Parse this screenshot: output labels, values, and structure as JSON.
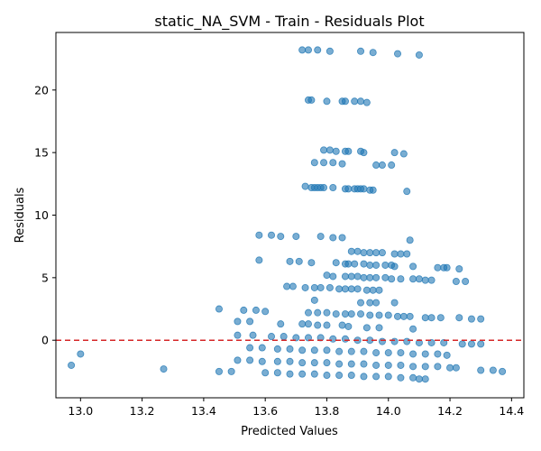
{
  "chart_data": {
    "type": "scatter",
    "title": "static_NA_SVM - Train - Residuals Plot",
    "xlabel": "Predicted Values",
    "ylabel": "Residuals",
    "xlim": [
      12.92,
      14.44
    ],
    "ylim": [
      -4.6,
      24.6
    ],
    "xticks": [
      13.0,
      13.2,
      13.4,
      13.6,
      13.8,
      14.0,
      14.2,
      14.4
    ],
    "xtick_labels": [
      "13.0",
      "13.2",
      "13.4",
      "13.6",
      "13.8",
      "14.0",
      "14.2",
      "14.4"
    ],
    "yticks": [
      0,
      5,
      10,
      15,
      20
    ],
    "ytick_labels": [
      "0",
      "5",
      "10",
      "15",
      "20"
    ],
    "grid": false,
    "reference_line": {
      "y": 0,
      "color": "#d62728",
      "style": "dashed"
    },
    "marker_color": "#1f77b4",
    "marker_alpha": 0.6,
    "series": [
      {
        "points": [
          [
            13.72,
            23.2
          ],
          [
            13.74,
            23.2
          ],
          [
            13.77,
            23.2
          ],
          [
            13.81,
            23.1
          ],
          [
            13.91,
            23.1
          ],
          [
            13.95,
            23.0
          ],
          [
            14.03,
            22.9
          ],
          [
            14.1,
            22.8
          ],
          [
            13.74,
            19.2
          ],
          [
            13.75,
            19.2
          ],
          [
            13.8,
            19.1
          ],
          [
            13.85,
            19.1
          ],
          [
            13.86,
            19.1
          ],
          [
            13.89,
            19.1
          ],
          [
            13.91,
            19.1
          ],
          [
            13.93,
            19.0
          ],
          [
            13.79,
            15.2
          ],
          [
            13.81,
            15.2
          ],
          [
            13.83,
            15.1
          ],
          [
            13.86,
            15.1
          ],
          [
            13.87,
            15.1
          ],
          [
            13.91,
            15.1
          ],
          [
            13.92,
            15.0
          ],
          [
            14.02,
            15.0
          ],
          [
            14.05,
            14.9
          ],
          [
            13.76,
            14.2
          ],
          [
            13.79,
            14.2
          ],
          [
            13.82,
            14.2
          ],
          [
            13.85,
            14.1
          ],
          [
            13.96,
            14.0
          ],
          [
            13.98,
            14.0
          ],
          [
            14.01,
            14.0
          ],
          [
            13.73,
            12.3
          ],
          [
            13.75,
            12.2
          ],
          [
            13.76,
            12.2
          ],
          [
            13.77,
            12.2
          ],
          [
            13.78,
            12.2
          ],
          [
            13.79,
            12.2
          ],
          [
            13.82,
            12.2
          ],
          [
            13.86,
            12.1
          ],
          [
            13.87,
            12.1
          ],
          [
            13.89,
            12.1
          ],
          [
            13.9,
            12.1
          ],
          [
            13.91,
            12.1
          ],
          [
            13.92,
            12.1
          ],
          [
            13.94,
            12.0
          ],
          [
            13.95,
            12.0
          ],
          [
            14.06,
            11.9
          ],
          [
            13.58,
            8.4
          ],
          [
            13.62,
            8.4
          ],
          [
            13.65,
            8.3
          ],
          [
            13.7,
            8.3
          ],
          [
            13.78,
            8.3
          ],
          [
            13.82,
            8.2
          ],
          [
            13.85,
            8.2
          ],
          [
            14.07,
            8.0
          ],
          [
            13.88,
            7.1
          ],
          [
            13.9,
            7.1
          ],
          [
            13.92,
            7.0
          ],
          [
            13.94,
            7.0
          ],
          [
            13.96,
            7.0
          ],
          [
            13.98,
            7.0
          ],
          [
            14.02,
            6.9
          ],
          [
            14.04,
            6.9
          ],
          [
            14.06,
            6.9
          ],
          [
            13.58,
            6.4
          ],
          [
            13.68,
            6.3
          ],
          [
            13.71,
            6.3
          ],
          [
            13.75,
            6.2
          ],
          [
            13.83,
            6.2
          ],
          [
            13.86,
            6.1
          ],
          [
            13.87,
            6.1
          ],
          [
            13.89,
            6.1
          ],
          [
            13.92,
            6.1
          ],
          [
            13.94,
            6.0
          ],
          [
            13.96,
            6.0
          ],
          [
            13.99,
            6.0
          ],
          [
            14.01,
            6.0
          ],
          [
            14.02,
            5.9
          ],
          [
            14.08,
            5.9
          ],
          [
            14.16,
            5.8
          ],
          [
            14.18,
            5.8
          ],
          [
            14.19,
            5.8
          ],
          [
            14.23,
            5.7
          ],
          [
            13.8,
            5.2
          ],
          [
            13.82,
            5.1
          ],
          [
            13.86,
            5.1
          ],
          [
            13.88,
            5.1
          ],
          [
            13.9,
            5.1
          ],
          [
            13.92,
            5.0
          ],
          [
            13.94,
            5.0
          ],
          [
            13.96,
            5.0
          ],
          [
            13.99,
            5.0
          ],
          [
            14.01,
            4.9
          ],
          [
            14.04,
            4.9
          ],
          [
            14.08,
            4.9
          ],
          [
            14.1,
            4.9
          ],
          [
            14.12,
            4.8
          ],
          [
            14.14,
            4.8
          ],
          [
            14.22,
            4.7
          ],
          [
            14.25,
            4.7
          ],
          [
            13.67,
            4.3
          ],
          [
            13.69,
            4.3
          ],
          [
            13.73,
            4.2
          ],
          [
            13.76,
            4.2
          ],
          [
            13.78,
            4.2
          ],
          [
            13.81,
            4.2
          ],
          [
            13.84,
            4.1
          ],
          [
            13.86,
            4.1
          ],
          [
            13.88,
            4.1
          ],
          [
            13.9,
            4.1
          ],
          [
            13.93,
            4.0
          ],
          [
            13.95,
            4.0
          ],
          [
            13.97,
            4.0
          ],
          [
            13.76,
            3.2
          ],
          [
            13.91,
            3.0
          ],
          [
            13.94,
            3.0
          ],
          [
            13.96,
            3.0
          ],
          [
            14.02,
            3.0
          ],
          [
            13.45,
            2.5
          ],
          [
            13.53,
            2.4
          ],
          [
            13.57,
            2.4
          ],
          [
            13.6,
            2.3
          ],
          [
            13.74,
            2.2
          ],
          [
            13.77,
            2.2
          ],
          [
            13.8,
            2.2
          ],
          [
            13.83,
            2.1
          ],
          [
            13.86,
            2.1
          ],
          [
            13.88,
            2.1
          ],
          [
            13.91,
            2.1
          ],
          [
            13.94,
            2.0
          ],
          [
            13.97,
            2.0
          ],
          [
            14.0,
            2.0
          ],
          [
            14.03,
            1.9
          ],
          [
            14.05,
            1.9
          ],
          [
            14.07,
            1.9
          ],
          [
            14.12,
            1.8
          ],
          [
            14.14,
            1.8
          ],
          [
            14.17,
            1.8
          ],
          [
            14.23,
            1.8
          ],
          [
            14.27,
            1.7
          ],
          [
            14.3,
            1.7
          ],
          [
            13.51,
            1.5
          ],
          [
            13.55,
            1.5
          ],
          [
            13.65,
            1.3
          ],
          [
            13.72,
            1.3
          ],
          [
            13.74,
            1.3
          ],
          [
            13.77,
            1.2
          ],
          [
            13.8,
            1.2
          ],
          [
            13.85,
            1.2
          ],
          [
            13.87,
            1.1
          ],
          [
            13.93,
            1.0
          ],
          [
            13.97,
            1.0
          ],
          [
            14.08,
            0.9
          ],
          [
            13.51,
            0.4
          ],
          [
            13.56,
            0.4
          ],
          [
            13.62,
            0.3
          ],
          [
            13.66,
            0.3
          ],
          [
            13.7,
            0.2
          ],
          [
            13.74,
            0.2
          ],
          [
            13.78,
            0.2
          ],
          [
            13.82,
            0.1
          ],
          [
            13.86,
            0.1
          ],
          [
            13.9,
            0.0
          ],
          [
            13.94,
            0.0
          ],
          [
            13.98,
            -0.1
          ],
          [
            14.02,
            -0.1
          ],
          [
            14.06,
            -0.1
          ],
          [
            14.1,
            -0.2
          ],
          [
            14.14,
            -0.2
          ],
          [
            14.18,
            -0.2
          ],
          [
            14.24,
            -0.3
          ],
          [
            14.27,
            -0.3
          ],
          [
            14.3,
            -0.3
          ],
          [
            13.55,
            -0.6
          ],
          [
            13.59,
            -0.6
          ],
          [
            13.64,
            -0.7
          ],
          [
            13.68,
            -0.7
          ],
          [
            13.72,
            -0.8
          ],
          [
            13.76,
            -0.8
          ],
          [
            13.8,
            -0.8
          ],
          [
            13.84,
            -0.9
          ],
          [
            13.88,
            -0.9
          ],
          [
            13.92,
            -0.9
          ],
          [
            13.96,
            -1.0
          ],
          [
            14.0,
            -1.0
          ],
          [
            14.04,
            -1.0
          ],
          [
            14.08,
            -1.1
          ],
          [
            14.12,
            -1.1
          ],
          [
            14.16,
            -1.1
          ],
          [
            14.19,
            -1.2
          ],
          [
            13.0,
            -1.1
          ],
          [
            13.51,
            -1.6
          ],
          [
            13.55,
            -1.6
          ],
          [
            13.59,
            -1.7
          ],
          [
            13.64,
            -1.7
          ],
          [
            13.68,
            -1.7
          ],
          [
            13.72,
            -1.8
          ],
          [
            13.76,
            -1.8
          ],
          [
            13.8,
            -1.8
          ],
          [
            13.84,
            -1.9
          ],
          [
            13.88,
            -1.9
          ],
          [
            13.92,
            -1.9
          ],
          [
            13.96,
            -2.0
          ],
          [
            14.0,
            -2.0
          ],
          [
            14.04,
            -2.0
          ],
          [
            14.08,
            -2.1
          ],
          [
            14.12,
            -2.1
          ],
          [
            14.16,
            -2.1
          ],
          [
            14.2,
            -2.2
          ],
          [
            14.22,
            -2.2
          ],
          [
            12.97,
            -2.0
          ],
          [
            13.27,
            -2.3
          ],
          [
            13.45,
            -2.5
          ],
          [
            13.49,
            -2.5
          ],
          [
            13.6,
            -2.6
          ],
          [
            13.64,
            -2.6
          ],
          [
            13.68,
            -2.7
          ],
          [
            13.72,
            -2.7
          ],
          [
            13.76,
            -2.7
          ],
          [
            13.8,
            -2.8
          ],
          [
            13.84,
            -2.8
          ],
          [
            13.88,
            -2.8
          ],
          [
            13.92,
            -2.9
          ],
          [
            13.96,
            -2.9
          ],
          [
            14.0,
            -2.9
          ],
          [
            14.04,
            -3.0
          ],
          [
            14.08,
            -3.0
          ],
          [
            14.1,
            -3.1
          ],
          [
            14.12,
            -3.1
          ],
          [
            14.3,
            -2.4
          ],
          [
            14.34,
            -2.4
          ],
          [
            14.37,
            -2.5
          ]
        ]
      }
    ]
  }
}
